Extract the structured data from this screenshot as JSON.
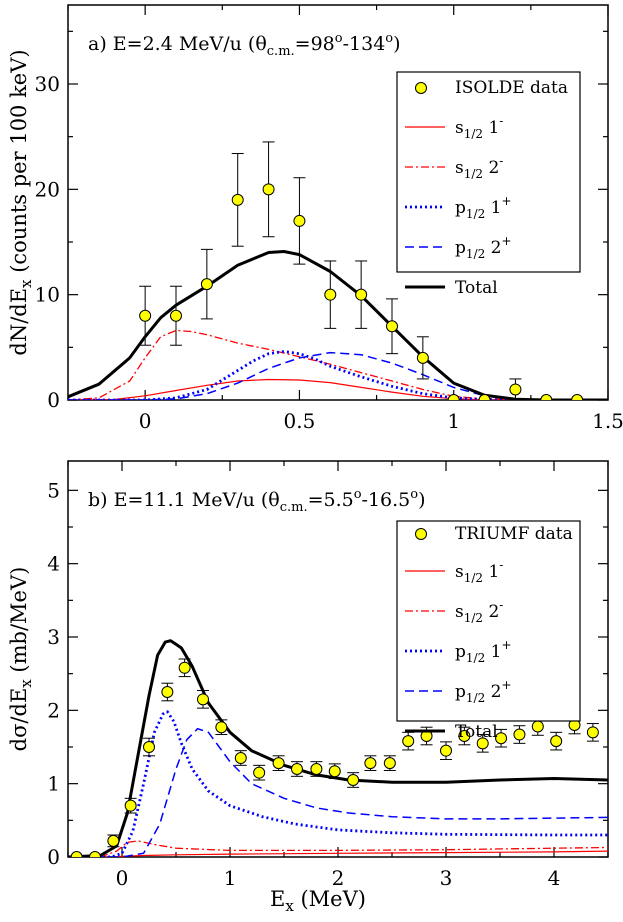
{
  "chart_data": [
    {
      "type": "line",
      "panel": "a",
      "title": "a) E=2.4 MeV/u (θc.m.=98°-134°)",
      "title_parts": {
        "prefix": "a) E=2.4 MeV/u (θ",
        "sub": "c.m.",
        "eq": "=98",
        "sup1": "o",
        "dash": "-134",
        "sup2": "o",
        "suffix": ")"
      },
      "ylabel": {
        "main": "dN/dE",
        "sub": "x",
        "rest": " (counts per 100 keV)"
      },
      "xlabel": "",
      "xlim": [
        -0.25,
        1.5
      ],
      "ylim": [
        0,
        37.5
      ],
      "xticks": [
        0,
        0.5,
        1,
        1.5
      ],
      "xtick_labels": [
        "0",
        "0.5",
        "1",
        "1.5"
      ],
      "yticks": [
        0,
        10,
        20,
        30
      ],
      "ytick_labels": [
        "0",
        "10",
        "20",
        "30"
      ],
      "legend_position": "top-right",
      "data_series": {
        "name": "ISOLDE data",
        "color": "#ffff00",
        "points": [
          {
            "x": 0.0,
            "y": 8,
            "err": 2.8
          },
          {
            "x": 0.1,
            "y": 8,
            "err": 2.8
          },
          {
            "x": 0.2,
            "y": 11,
            "err": 3.3
          },
          {
            "x": 0.3,
            "y": 19,
            "err": 4.4
          },
          {
            "x": 0.4,
            "y": 20,
            "err": 4.5
          },
          {
            "x": 0.5,
            "y": 17,
            "err": 4.1
          },
          {
            "x": 0.6,
            "y": 10,
            "err": 3.2
          },
          {
            "x": 0.7,
            "y": 10,
            "err": 3.2
          },
          {
            "x": 0.8,
            "y": 7,
            "err": 2.6
          },
          {
            "x": 0.9,
            "y": 4,
            "err": 2.0
          },
          {
            "x": 1.0,
            "y": 0,
            "err": 0
          },
          {
            "x": 1.1,
            "y": 0,
            "err": 0
          },
          {
            "x": 1.2,
            "y": 1,
            "err": 1.0
          },
          {
            "x": 1.3,
            "y": 0,
            "err": 0
          },
          {
            "x": 1.4,
            "y": 0,
            "err": 0
          }
        ]
      },
      "series": [
        {
          "key": "s12_1m",
          "label": {
            "base": "s",
            "sub": "1/2",
            "j": " 1",
            "sup": "-"
          },
          "color": "#ff0000",
          "dash": "",
          "width": 1.2,
          "x": [
            -0.25,
            -0.1,
            0,
            0.1,
            0.2,
            0.3,
            0.4,
            0.5,
            0.6,
            0.7,
            0.8,
            0.9,
            1.0,
            1.1,
            1.2,
            1.3,
            1.5
          ],
          "y": [
            0,
            0.05,
            0.4,
            0.9,
            1.4,
            1.8,
            1.95,
            1.9,
            1.65,
            1.2,
            0.75,
            0.35,
            0.12,
            0.03,
            0,
            0,
            0
          ]
        },
        {
          "key": "s12_2m",
          "label": {
            "base": "s",
            "sub": "1/2",
            "j": " 2",
            "sup": "-"
          },
          "color": "#ff0000",
          "dash": "8,3,2,3",
          "width": 1.3,
          "x": [
            -0.25,
            -0.15,
            -0.05,
            0,
            0.05,
            0.1,
            0.15,
            0.2,
            0.3,
            0.4,
            0.5,
            0.6,
            0.7,
            0.8,
            0.9,
            1.0,
            1.1,
            1.2,
            1.3,
            1.5
          ],
          "y": [
            0,
            0.2,
            1.8,
            4.0,
            6.0,
            6.6,
            6.5,
            6.2,
            5.4,
            4.8,
            4.1,
            3.4,
            2.6,
            1.8,
            1.0,
            0.35,
            0.1,
            0.02,
            0,
            0
          ]
        },
        {
          "key": "p12_1p",
          "label": {
            "base": "p",
            "sub": "1/2",
            "j": " 1",
            "sup": "+"
          },
          "color": "#0000ff",
          "dash": "2,3",
          "width": 2.8,
          "x": [
            -0.25,
            0,
            0.1,
            0.2,
            0.3,
            0.35,
            0.4,
            0.45,
            0.5,
            0.55,
            0.6,
            0.7,
            0.8,
            0.9,
            1.0,
            1.1,
            1.2,
            1.5
          ],
          "y": [
            0,
            0,
            0.2,
            1.0,
            2.8,
            3.7,
            4.4,
            4.6,
            4.4,
            3.9,
            3.2,
            2.2,
            1.3,
            0.6,
            0.2,
            0.05,
            0,
            0
          ]
        },
        {
          "key": "p12_2p",
          "label": {
            "base": "p",
            "sub": "1/2",
            "j": " 2",
            "sup": "+"
          },
          "color": "#0000ff",
          "dash": "9,5",
          "width": 1.5,
          "x": [
            -0.25,
            0,
            0.1,
            0.2,
            0.3,
            0.4,
            0.5,
            0.6,
            0.7,
            0.8,
            0.9,
            1.0,
            1.1,
            1.2,
            1.3,
            1.5
          ],
          "y": [
            0,
            0,
            0.1,
            0.6,
            1.6,
            3.0,
            4.0,
            4.5,
            4.3,
            3.5,
            2.4,
            1.2,
            0.4,
            0.1,
            0,
            0
          ]
        },
        {
          "key": "total",
          "label": {
            "base": "Total",
            "sub": "",
            "j": "",
            "sup": ""
          },
          "color": "#000000",
          "dash": "",
          "width": 3,
          "x": [
            -0.25,
            -0.15,
            -0.05,
            0,
            0.05,
            0.1,
            0.2,
            0.3,
            0.4,
            0.45,
            0.5,
            0.6,
            0.7,
            0.8,
            0.9,
            1.0,
            1.1,
            1.2,
            1.3,
            1.5
          ],
          "y": [
            0.3,
            1.5,
            4.0,
            6.0,
            7.8,
            9.0,
            10.8,
            12.8,
            14.0,
            14.1,
            13.8,
            12.2,
            9.9,
            7.0,
            4.1,
            1.6,
            0.45,
            0.08,
            0,
            0
          ]
        }
      ]
    },
    {
      "type": "line",
      "panel": "b",
      "title": "b) E=11.1 MeV/u (θc.m.=5.5°-16.5°)",
      "title_parts": {
        "prefix": "b) E=11.1 MeV/u (θ",
        "sub": "c.m.",
        "eq": "=5.5",
        "sup1": "o",
        "dash": "-16.5",
        "sup2": "o",
        "suffix": ")"
      },
      "ylabel": {
        "main": "dσ/dE",
        "sub": "x",
        "rest": " (mb/MeV)"
      },
      "xlabel": {
        "main": "E",
        "sub": "x",
        "rest": " (MeV)"
      },
      "xlim": [
        -0.5,
        4.5
      ],
      "ylim": [
        0,
        5.4
      ],
      "xticks": [
        0,
        1,
        2,
        3,
        4
      ],
      "xtick_labels": [
        "0",
        "1",
        "2",
        "3",
        "4"
      ],
      "yticks": [
        0,
        1,
        2,
        3,
        4,
        5
      ],
      "ytick_labels": [
        "0",
        "1",
        "2",
        "3",
        "4",
        "5"
      ],
      "legend_position": "top-right",
      "data_series": {
        "name": "TRIUMF data",
        "color": "#ffff00",
        "points": [
          {
            "x": -0.42,
            "y": 0.0,
            "err": 0
          },
          {
            "x": -0.25,
            "y": 0.0,
            "err": 0
          },
          {
            "x": -0.08,
            "y": 0.22,
            "err": 0.08
          },
          {
            "x": 0.08,
            "y": 0.7,
            "err": 0.1
          },
          {
            "x": 0.25,
            "y": 1.5,
            "err": 0.12
          },
          {
            "x": 0.42,
            "y": 2.25,
            "err": 0.12
          },
          {
            "x": 0.58,
            "y": 2.58,
            "err": 0.12
          },
          {
            "x": 0.75,
            "y": 2.15,
            "err": 0.12
          },
          {
            "x": 0.92,
            "y": 1.77,
            "err": 0.1
          },
          {
            "x": 1.1,
            "y": 1.35,
            "err": 0.1
          },
          {
            "x": 1.27,
            "y": 1.15,
            "err": 0.1
          },
          {
            "x": 1.45,
            "y": 1.28,
            "err": 0.1
          },
          {
            "x": 1.62,
            "y": 1.2,
            "err": 0.1
          },
          {
            "x": 1.8,
            "y": 1.2,
            "err": 0.1
          },
          {
            "x": 1.97,
            "y": 1.17,
            "err": 0.1
          },
          {
            "x": 2.14,
            "y": 1.05,
            "err": 0.1
          },
          {
            "x": 2.3,
            "y": 1.28,
            "err": 0.1
          },
          {
            "x": 2.48,
            "y": 1.28,
            "err": 0.1
          },
          {
            "x": 2.65,
            "y": 1.58,
            "err": 0.12
          },
          {
            "x": 2.82,
            "y": 1.65,
            "err": 0.12
          },
          {
            "x": 3.0,
            "y": 1.45,
            "err": 0.12
          },
          {
            "x": 3.17,
            "y": 1.65,
            "err": 0.12
          },
          {
            "x": 3.34,
            "y": 1.55,
            "err": 0.12
          },
          {
            "x": 3.51,
            "y": 1.62,
            "err": 0.12
          },
          {
            "x": 3.68,
            "y": 1.67,
            "err": 0.12
          },
          {
            "x": 3.85,
            "y": 1.78,
            "err": 0.12
          },
          {
            "x": 4.02,
            "y": 1.58,
            "err": 0.12
          },
          {
            "x": 4.19,
            "y": 1.8,
            "err": 0.12
          },
          {
            "x": 4.36,
            "y": 1.7,
            "err": 0.12
          }
        ]
      },
      "series": [
        {
          "key": "s12_1m",
          "label": {
            "base": "s",
            "sub": "1/2",
            "j": " 1",
            "sup": "-"
          },
          "color": "#ff0000",
          "dash": "",
          "width": 1.2,
          "x": [
            -0.5,
            -0.1,
            0,
            0.2,
            0.5,
            1.0,
            2.0,
            3.0,
            4.0,
            4.5
          ],
          "y": [
            0,
            0,
            0.01,
            0.02,
            0.03,
            0.04,
            0.05,
            0.06,
            0.07,
            0.08
          ]
        },
        {
          "key": "s12_2m",
          "label": {
            "base": "s",
            "sub": "1/2",
            "j": " 2",
            "sup": "-"
          },
          "color": "#ff0000",
          "dash": "8,3,2,3",
          "width": 1.3,
          "x": [
            -0.5,
            -0.2,
            -0.05,
            0.05,
            0.15,
            0.3,
            0.5,
            1.0,
            2.0,
            3.0,
            4.0,
            4.5
          ],
          "y": [
            0,
            0,
            0.08,
            0.2,
            0.22,
            0.17,
            0.12,
            0.09,
            0.09,
            0.1,
            0.12,
            0.13
          ]
        },
        {
          "key": "p12_1p",
          "label": {
            "base": "p",
            "sub": "1/2",
            "j": " 1",
            "sup": "+"
          },
          "color": "#0000ff",
          "dash": "2,3",
          "width": 2.8,
          "x": [
            -0.5,
            -0.1,
            0,
            0.1,
            0.2,
            0.3,
            0.38,
            0.42,
            0.48,
            0.55,
            0.65,
            0.8,
            1.0,
            1.3,
            1.6,
            2.0,
            2.5,
            3.0,
            4.0,
            4.5
          ],
          "y": [
            0,
            0,
            0.05,
            0.35,
            1.0,
            1.7,
            1.95,
            1.98,
            1.85,
            1.55,
            1.2,
            0.9,
            0.7,
            0.55,
            0.45,
            0.37,
            0.33,
            0.31,
            0.3,
            0.3
          ]
        },
        {
          "key": "p12_2p",
          "label": {
            "base": "p",
            "sub": "1/2",
            "j": " 2",
            "sup": "+"
          },
          "color": "#0000ff",
          "dash": "9,5",
          "width": 1.5,
          "x": [
            -0.5,
            0,
            0.2,
            0.35,
            0.5,
            0.6,
            0.7,
            0.8,
            0.9,
            1.0,
            1.2,
            1.5,
            1.8,
            2.1,
            2.5,
            3.0,
            3.5,
            4.0,
            4.5
          ],
          "y": [
            0,
            0,
            0.05,
            0.45,
            1.2,
            1.6,
            1.75,
            1.7,
            1.5,
            1.3,
            1.0,
            0.8,
            0.67,
            0.6,
            0.55,
            0.52,
            0.52,
            0.53,
            0.54
          ]
        },
        {
          "key": "total",
          "label": {
            "base": "Total",
            "sub": "",
            "j": "",
            "sup": ""
          },
          "color": "#000000",
          "dash": "",
          "width": 3,
          "x": [
            -0.5,
            -0.2,
            -0.05,
            0.05,
            0.15,
            0.25,
            0.33,
            0.4,
            0.45,
            0.5,
            0.55,
            0.65,
            0.8,
            1.0,
            1.2,
            1.5,
            1.8,
            2.1,
            2.5,
            3.0,
            3.5,
            4.0,
            4.5
          ],
          "y": [
            0,
            0.02,
            0.15,
            0.6,
            1.4,
            2.2,
            2.75,
            2.93,
            2.95,
            2.9,
            2.85,
            2.6,
            2.1,
            1.7,
            1.45,
            1.25,
            1.12,
            1.05,
            1.02,
            1.02,
            1.05,
            1.07,
            1.05
          ]
        }
      ]
    }
  ]
}
